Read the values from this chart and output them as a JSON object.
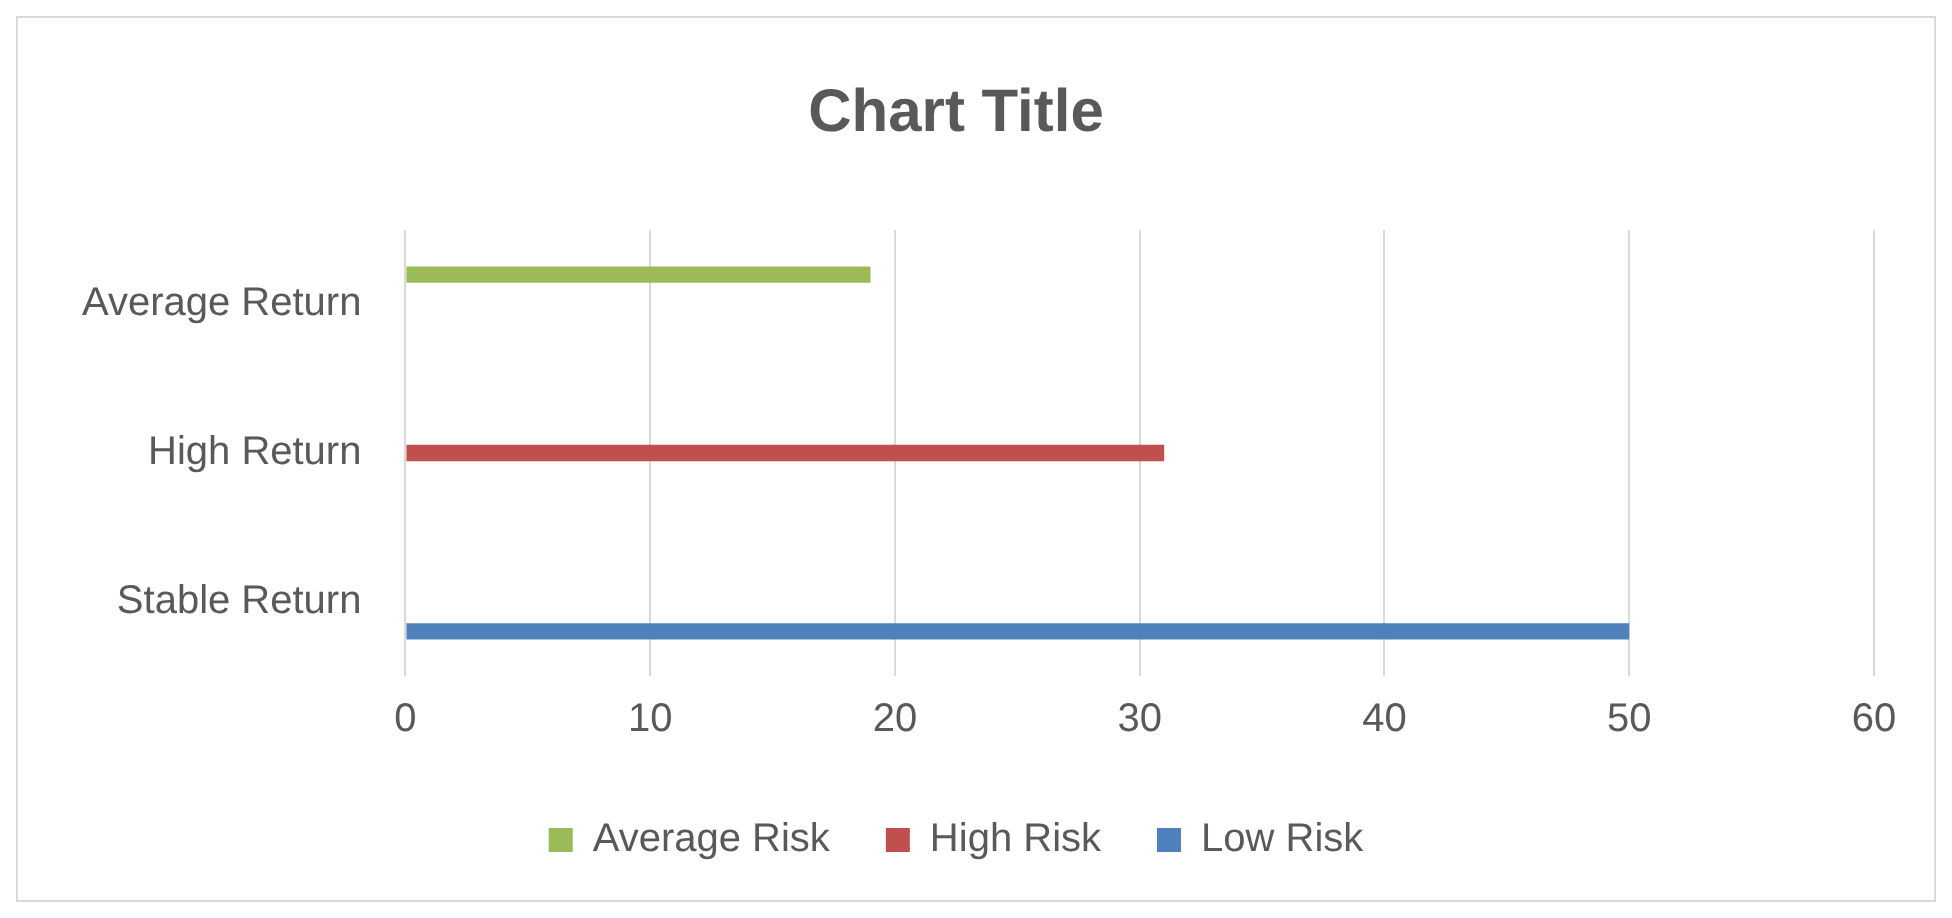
{
  "chart_data": {
    "type": "bar",
    "orientation": "horizontal",
    "title": "Chart Title",
    "categories": [
      "Average Return",
      "High Return",
      "Stable Return"
    ],
    "series": [
      {
        "name": "Average Risk",
        "color": "#9bbb59",
        "values": [
          19,
          null,
          null
        ]
      },
      {
        "name": "High Risk",
        "color": "#c0504d",
        "values": [
          null,
          31,
          null
        ]
      },
      {
        "name": "Low Risk",
        "color": "#4f81bd",
        "values": [
          null,
          null,
          50
        ]
      }
    ],
    "xlim": [
      0,
      60
    ],
    "xticks": [
      0,
      10,
      20,
      30,
      40,
      50,
      60
    ],
    "grid": "x",
    "legend": "bottom"
  }
}
